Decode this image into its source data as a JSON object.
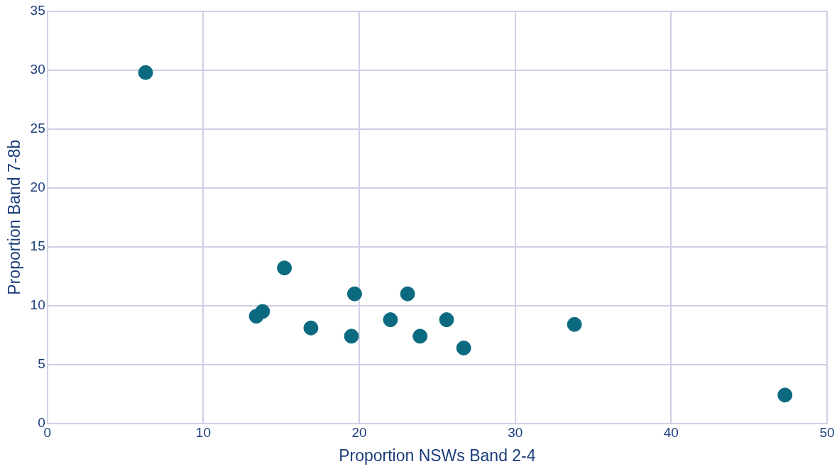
{
  "chart_data": {
    "type": "scatter",
    "xlabel": "Proportion NSWs Band 2-4",
    "ylabel": "Proportion Band 7-8b",
    "x": [
      6.3,
      13.4,
      13.8,
      15.2,
      16.9,
      19.5,
      19.7,
      22.0,
      23.1,
      23.9,
      25.6,
      26.7,
      33.8,
      47.3
    ],
    "series": [
      {
        "color": "#0b6a80",
        "values": [
          29.8,
          9.1,
          9.5,
          13.2,
          8.1,
          7.4,
          11.0,
          8.8,
          11.0,
          7.4,
          8.8,
          6.4,
          8.4,
          2.4
        ]
      }
    ],
    "xlim": [
      0,
      50
    ],
    "xticks": [
      0,
      10,
      20,
      30,
      40,
      50
    ],
    "ylim": [
      0,
      35
    ],
    "yticks": [
      0,
      5,
      10,
      15,
      20,
      25,
      30,
      35
    ],
    "grid": true,
    "legend": false,
    "marker": "circle"
  }
}
